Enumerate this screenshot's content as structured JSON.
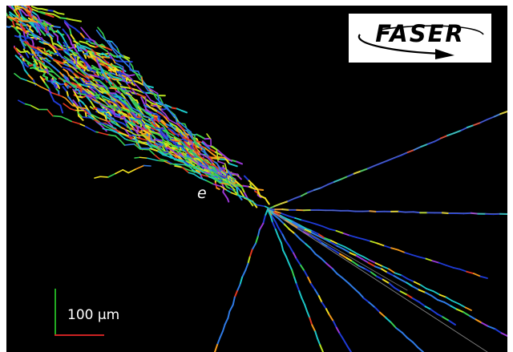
{
  "particle_label": "e",
  "scale_bar": {
    "label": "100 µm"
  },
  "logo": {
    "text": "FASER"
  },
  "colors": {
    "background": "#000000",
    "scale_vertical": "#22aa22",
    "scale_horizontal": "#cc2222",
    "track_palette": [
      "#1f3bd6",
      "#2f7be6",
      "#1cc7c7",
      "#38d050",
      "#b9e21f",
      "#f0e020",
      "#f59a1a",
      "#e2381f",
      "#9a38d8"
    ],
    "neutral_track": "#9a9a9a"
  },
  "icons": {
    "logo_arrow": "swoosh-arrow-icon"
  }
}
